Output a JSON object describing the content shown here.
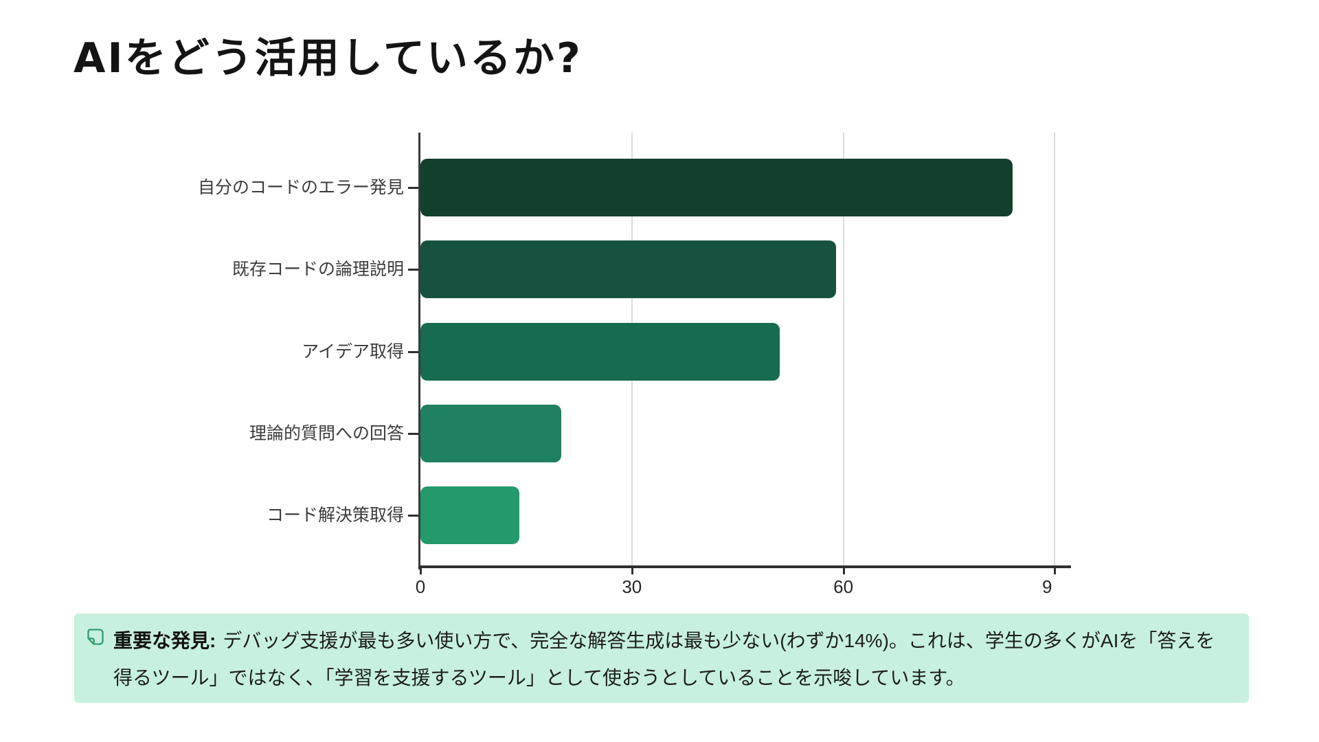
{
  "header": {
    "title": "AIをどう活用しているか?"
  },
  "chart_data": {
    "type": "bar",
    "orientation": "horizontal",
    "title": "AIをどう活用しているか?",
    "categories": [
      "自分のコードのエラー発見",
      "既存コードの論理説明",
      "アイデア取得",
      "理論的質問への回答",
      "コード解決策取得"
    ],
    "values": [
      84,
      59,
      51,
      20,
      14
    ],
    "unit": "%",
    "xlabel": "",
    "ylabel": "",
    "xlim": [
      0,
      92
    ],
    "xticks": [
      {
        "value": 0,
        "label": "0"
      },
      {
        "value": 30,
        "label": "30"
      },
      {
        "value": 60,
        "label": "60"
      },
      {
        "value": 90,
        "label": "9",
        "label_clipped": true
      }
    ],
    "gridlines_at": [
      30,
      60,
      90
    ],
    "grid": "vertical",
    "legend": "none",
    "bar_colors": [
      "#12402d",
      "#16523f",
      "#176b50",
      "#1f8161",
      "#23996c"
    ],
    "axis_color": "#2f2f2f",
    "grid_color": "#dcdcdc",
    "label_color": "#3c3c3c"
  },
  "callout": {
    "icon": "sticky-note-icon",
    "heading": "重要な発見:",
    "body": "デバッグ支援が最も多い使い方で、完全な解答生成は最も少ない(わずか14%)。これは、学生の多くがAIを「答えを得るツール」ではなく、「学習を支援するツール」として使おうとしていることを示唆しています。",
    "background_color": "#c7f1de",
    "accent_color": "#2f9e6e"
  }
}
